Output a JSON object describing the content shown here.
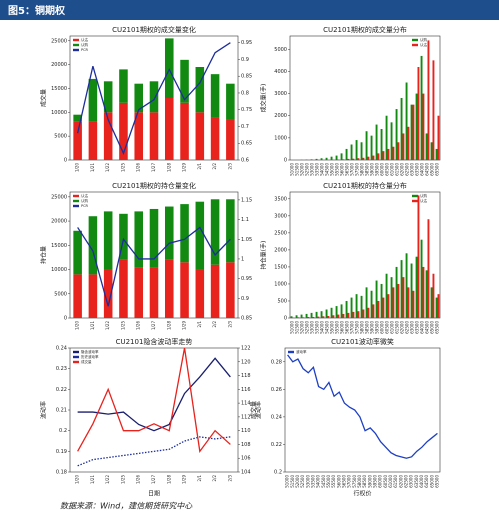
{
  "header": {
    "title": "图5：铜期权"
  },
  "footer": "数据来源：Wind，建信期货研究中心",
  "chart_data": [
    {
      "type": "bar_line",
      "title": "CU2101期权的成交量变化",
      "ylabel": "成交量",
      "stacked": true,
      "categories": [
        "1/20",
        "1/21",
        "1/22",
        "1/25",
        "1/26",
        "1/27",
        "1/28",
        "1/29",
        "2/1",
        "2/2",
        "2/3"
      ],
      "series": [
        {
          "name": "认沽",
          "color": "#e8221c",
          "values": [
            8000,
            8000,
            10000,
            12000,
            10000,
            10000,
            13000,
            12000,
            10000,
            9000,
            8500
          ]
        },
        {
          "name": "认购",
          "color": "#128a12",
          "values": [
            1500,
            9000,
            6500,
            7000,
            6000,
            6500,
            12500,
            9000,
            9500,
            9000,
            7500
          ]
        },
        {
          "name": "PCR",
          "color": "#1d2e9c",
          "axis": "y2",
          "values": [
            0.68,
            0.88,
            0.72,
            0.62,
            0.75,
            0.78,
            0.87,
            0.78,
            0.83,
            0.92,
            0.95
          ]
        }
      ],
      "ylim": [
        0,
        26000
      ],
      "yticks": [
        0,
        5000,
        10000,
        15000,
        20000,
        25000
      ],
      "y2lim": [
        0.6,
        0.97
      ],
      "y2ticks": [
        0.6,
        0.65,
        0.7,
        0.75,
        0.8,
        0.85,
        0.9,
        0.95
      ]
    },
    {
      "type": "bar",
      "title": "CU2101期权的成交量分布",
      "ylabel": "成交量(手)",
      "categories": [
        "51000",
        "51500",
        "52000",
        "52500",
        "53000",
        "53500",
        "54000",
        "54500",
        "55000",
        "55500",
        "56000",
        "56500",
        "57000",
        "57500",
        "58000",
        "58500",
        "59000",
        "59500",
        "60000",
        "60500",
        "61000",
        "61500",
        "62000",
        "62500",
        "63000",
        "63500",
        "64000",
        "64500",
        "65000",
        "65500"
      ],
      "series": [
        {
          "name": "认购",
          "color": "#128a12",
          "values": [
            0,
            0,
            10,
            20,
            30,
            50,
            80,
            100,
            150,
            200,
            300,
            500,
            700,
            900,
            800,
            1300,
            1100,
            1600,
            1400,
            2000,
            1700,
            2300,
            2800,
            3500,
            2500,
            3000,
            4700,
            1200,
            800,
            500
          ]
        },
        {
          "name": "认沽",
          "color": "#e8221c",
          "values": [
            0,
            0,
            0,
            0,
            0,
            0,
            0,
            0,
            10,
            20,
            30,
            50,
            60,
            80,
            100,
            150,
            200,
            300,
            400,
            500,
            600,
            800,
            1200,
            1500,
            2500,
            4200,
            3000,
            5400,
            4500,
            2000
          ]
        }
      ],
      "ylim": [
        0,
        5600
      ],
      "yticks": [
        0,
        1000,
        2000,
        3000,
        4000,
        5000
      ]
    },
    {
      "type": "bar_line",
      "title": "CU2101期权的持仓量变化",
      "ylabel": "持仓量",
      "stacked": true,
      "categories": [
        "1/20",
        "1/21",
        "1/22",
        "1/25",
        "1/26",
        "1/27",
        "1/28",
        "1/29",
        "2/1",
        "2/2",
        "2/3"
      ],
      "series": [
        {
          "name": "认沽",
          "color": "#e8221c",
          "values": [
            9000,
            9000,
            10000,
            12000,
            10500,
            10500,
            12000,
            11500,
            10000,
            11000,
            11500
          ]
        },
        {
          "name": "认购",
          "color": "#128a12",
          "values": [
            9000,
            12000,
            12000,
            9500,
            11500,
            12000,
            11000,
            12000,
            14000,
            13500,
            13000
          ]
        },
        {
          "name": "PCR",
          "color": "#1d2e9c",
          "axis": "y2",
          "values": [
            1.08,
            1.02,
            0.88,
            1.05,
            1.0,
            1.0,
            1.04,
            1.05,
            1.08,
            1.01,
            1.05
          ]
        }
      ],
      "ylim": [
        0,
        26000
      ],
      "yticks": [
        0,
        5000,
        10000,
        15000,
        20000,
        25000
      ],
      "y2lim": [
        0.85,
        1.17
      ],
      "y2ticks": [
        0.85,
        0.9,
        0.95,
        1,
        1.05,
        1.1,
        1.15
      ]
    },
    {
      "type": "bar",
      "title": "CU2101期权的持仓量分布",
      "ylabel": "持仓量(手)",
      "categories": [
        "51000",
        "51500",
        "52000",
        "52500",
        "53000",
        "53500",
        "54000",
        "54500",
        "55000",
        "55500",
        "56000",
        "56500",
        "57000",
        "57500",
        "58000",
        "58500",
        "59000",
        "59500",
        "60000",
        "60500",
        "61000",
        "61500",
        "62000",
        "62500",
        "63000",
        "63500",
        "64000",
        "64500",
        "65000",
        "65500"
      ],
      "series": [
        {
          "name": "认购",
          "color": "#128a12",
          "values": [
            50,
            80,
            100,
            120,
            150,
            180,
            200,
            250,
            300,
            350,
            400,
            500,
            600,
            700,
            650,
            900,
            800,
            1100,
            1000,
            1300,
            1200,
            1500,
            1700,
            1900,
            1600,
            1800,
            2300,
            1400,
            900,
            600
          ]
        },
        {
          "name": "认沽",
          "color": "#e8221c",
          "values": [
            10,
            20,
            20,
            30,
            30,
            40,
            50,
            60,
            80,
            100,
            120,
            150,
            180,
            200,
            250,
            300,
            400,
            500,
            600,
            700,
            900,
            1000,
            1200,
            900,
            800,
            3600,
            1500,
            2900,
            1300,
            700
          ]
        }
      ],
      "ylim": [
        0,
        3700
      ],
      "yticks": [
        0,
        500,
        1000,
        1500,
        2000,
        2500,
        3000,
        3500
      ]
    },
    {
      "type": "line",
      "title": "CU2101隐含波动率走势",
      "ylabel": "波动率",
      "y2label": "成交量",
      "xlabel": "日期",
      "categories": [
        "1/20",
        "1/21",
        "1/22",
        "1/25",
        "1/26",
        "1/27",
        "1/28",
        "1/29",
        "2/1",
        "2/2",
        "2/3"
      ],
      "series": [
        {
          "name": "隐含波动率",
          "color": "#1a1f6e",
          "values": [
            0.209,
            0.209,
            0.208,
            0.209,
            0.203,
            0.2,
            0.203,
            0.218,
            0.226,
            0.235,
            0.226
          ]
        },
        {
          "name": "历史波动率",
          "color": "#1d2e9c",
          "style": "dotted",
          "values": [
            0.183,
            0.186,
            0.187,
            0.188,
            0.189,
            0.19,
            0.191,
            0.195,
            0.197,
            0.196,
            0.197
          ]
        },
        {
          "name": "成交量",
          "color": "#e8221c",
          "axis": "y2",
          "values": [
            107,
            111,
            116,
            110,
            110,
            111,
            110,
            122,
            107,
            110,
            108
          ]
        }
      ],
      "ylim": [
        0.18,
        0.24
      ],
      "yticks": [
        0.18,
        0.19,
        0.2,
        0.21,
        0.22,
        0.23,
        0.24
      ],
      "y2lim": [
        104,
        122
      ],
      "y2ticks": [
        104,
        106,
        108,
        110,
        112,
        114,
        116,
        118,
        120,
        122
      ]
    },
    {
      "type": "line",
      "title": "CU2101波动率微笑",
      "ylabel": "波动率",
      "xlabel": "行权价",
      "categories": [
        "51000",
        "51500",
        "52000",
        "52500",
        "53000",
        "53500",
        "54000",
        "54500",
        "55000",
        "55500",
        "56000",
        "56500",
        "57000",
        "57500",
        "58000",
        "58500",
        "59000",
        "59500",
        "60000",
        "60500",
        "61000",
        "61500",
        "62000",
        "62500",
        "63000",
        "63500",
        "64000",
        "64500",
        "65000",
        "65500"
      ],
      "series": [
        {
          "name": "波动率",
          "color": "#1d3fc4",
          "values": [
            0.285,
            0.28,
            0.282,
            0.275,
            0.272,
            0.276,
            0.262,
            0.26,
            0.265,
            0.255,
            0.258,
            0.25,
            0.247,
            0.245,
            0.24,
            0.23,
            0.232,
            0.228,
            0.222,
            0.218,
            0.214,
            0.212,
            0.211,
            0.21,
            0.211,
            0.215,
            0.218,
            0.222,
            0.225,
            0.228
          ]
        }
      ],
      "ylim": [
        0.2,
        0.29
      ],
      "yticks": [
        0.2,
        0.22,
        0.24,
        0.26,
        0.28
      ]
    }
  ]
}
